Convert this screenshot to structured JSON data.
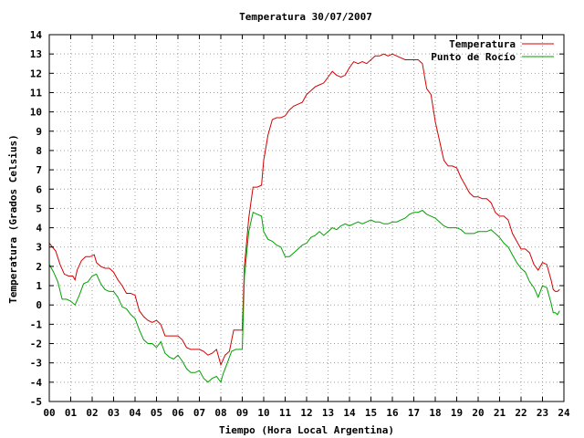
{
  "chart_data": {
    "type": "line",
    "title": "Temperatura 30/07/2007",
    "xlabel": "Tiempo (Hora Local Argentina)",
    "ylabel": "Temperatura (Grados Celsius)",
    "xlim": [
      0,
      24
    ],
    "ylim": [
      -5,
      14
    ],
    "x_ticks": [
      "00",
      "01",
      "02",
      "03",
      "04",
      "05",
      "06",
      "07",
      "08",
      "09",
      "10",
      "11",
      "12",
      "13",
      "14",
      "15",
      "16",
      "17",
      "18",
      "19",
      "20",
      "21",
      "22",
      "23",
      "24"
    ],
    "y_ticks": [
      "-5",
      "-4",
      "-3",
      "-2",
      "-1",
      "0",
      "1",
      "2",
      "3",
      "4",
      "5",
      "6",
      "7",
      "8",
      "9",
      "10",
      "11",
      "12",
      "13",
      "14"
    ],
    "grid": true,
    "legend_position": "top-right",
    "series": [
      {
        "name": "Temperatura",
        "color": "#d40000",
        "points": [
          [
            0.0,
            3.2
          ],
          [
            0.3,
            2.8
          ],
          [
            0.5,
            2.1
          ],
          [
            0.7,
            1.6
          ],
          [
            0.9,
            1.5
          ],
          [
            1.1,
            1.5
          ],
          [
            1.2,
            1.3
          ],
          [
            1.3,
            1.8
          ],
          [
            1.5,
            2.3
          ],
          [
            1.7,
            2.5
          ],
          [
            1.9,
            2.5
          ],
          [
            2.1,
            2.6
          ],
          [
            2.2,
            2.2
          ],
          [
            2.4,
            2.0
          ],
          [
            2.6,
            1.9
          ],
          [
            2.8,
            1.9
          ],
          [
            3.0,
            1.7
          ],
          [
            3.2,
            1.3
          ],
          [
            3.4,
            1.0
          ],
          [
            3.6,
            0.6
          ],
          [
            3.8,
            0.6
          ],
          [
            4.0,
            0.5
          ],
          [
            4.2,
            -0.3
          ],
          [
            4.4,
            -0.6
          ],
          [
            4.6,
            -0.8
          ],
          [
            4.8,
            -0.9
          ],
          [
            5.0,
            -0.8
          ],
          [
            5.2,
            -1.0
          ],
          [
            5.4,
            -1.6
          ],
          [
            5.6,
            -1.6
          ],
          [
            5.8,
            -1.6
          ],
          [
            6.0,
            -1.6
          ],
          [
            6.2,
            -1.8
          ],
          [
            6.4,
            -2.2
          ],
          [
            6.6,
            -2.3
          ],
          [
            6.8,
            -2.3
          ],
          [
            7.0,
            -2.3
          ],
          [
            7.2,
            -2.4
          ],
          [
            7.4,
            -2.6
          ],
          [
            7.6,
            -2.5
          ],
          [
            7.8,
            -2.3
          ],
          [
            8.0,
            -3.1
          ],
          [
            8.2,
            -2.6
          ],
          [
            8.4,
            -2.4
          ],
          [
            8.6,
            -1.3
          ],
          [
            8.8,
            -1.3
          ],
          [
            9.0,
            -1.3
          ],
          [
            9.1,
            2.0
          ],
          [
            9.3,
            4.5
          ],
          [
            9.5,
            6.1
          ],
          [
            9.7,
            6.1
          ],
          [
            9.9,
            6.2
          ],
          [
            10.0,
            7.5
          ],
          [
            10.2,
            8.8
          ],
          [
            10.4,
            9.6
          ],
          [
            10.6,
            9.7
          ],
          [
            10.8,
            9.7
          ],
          [
            11.0,
            9.8
          ],
          [
            11.2,
            10.1
          ],
          [
            11.4,
            10.3
          ],
          [
            11.6,
            10.4
          ],
          [
            11.8,
            10.5
          ],
          [
            12.0,
            10.9
          ],
          [
            12.2,
            11.1
          ],
          [
            12.4,
            11.3
          ],
          [
            12.6,
            11.4
          ],
          [
            12.8,
            11.5
          ],
          [
            13.0,
            11.8
          ],
          [
            13.2,
            12.1
          ],
          [
            13.4,
            11.9
          ],
          [
            13.6,
            11.8
          ],
          [
            13.8,
            11.9
          ],
          [
            14.0,
            12.3
          ],
          [
            14.2,
            12.6
          ],
          [
            14.4,
            12.5
          ],
          [
            14.6,
            12.6
          ],
          [
            14.8,
            12.5
          ],
          [
            15.0,
            12.7
          ],
          [
            15.2,
            12.9
          ],
          [
            15.4,
            12.9
          ],
          [
            15.6,
            13.0
          ],
          [
            15.8,
            12.9
          ],
          [
            16.0,
            13.0
          ],
          [
            16.2,
            12.9
          ],
          [
            16.4,
            12.8
          ],
          [
            16.6,
            12.7
          ],
          [
            16.8,
            12.7
          ],
          [
            17.0,
            12.7
          ],
          [
            17.2,
            12.7
          ],
          [
            17.4,
            12.5
          ],
          [
            17.6,
            11.2
          ],
          [
            17.8,
            10.9
          ],
          [
            18.0,
            9.5
          ],
          [
            18.2,
            8.5
          ],
          [
            18.4,
            7.5
          ],
          [
            18.6,
            7.2
          ],
          [
            18.8,
            7.2
          ],
          [
            19.0,
            7.1
          ],
          [
            19.2,
            6.6
          ],
          [
            19.4,
            6.2
          ],
          [
            19.6,
            5.8
          ],
          [
            19.8,
            5.6
          ],
          [
            20.0,
            5.6
          ],
          [
            20.2,
            5.5
          ],
          [
            20.4,
            5.5
          ],
          [
            20.6,
            5.3
          ],
          [
            20.8,
            4.8
          ],
          [
            21.0,
            4.6
          ],
          [
            21.2,
            4.6
          ],
          [
            21.4,
            4.4
          ],
          [
            21.6,
            3.7
          ],
          [
            21.8,
            3.3
          ],
          [
            22.0,
            2.9
          ],
          [
            22.2,
            2.9
          ],
          [
            22.4,
            2.7
          ],
          [
            22.6,
            2.1
          ],
          [
            22.8,
            1.8
          ],
          [
            23.0,
            2.2
          ],
          [
            23.2,
            2.1
          ],
          [
            23.4,
            1.3
          ],
          [
            23.5,
            0.8
          ],
          [
            23.6,
            0.7
          ],
          [
            23.7,
            0.7
          ],
          [
            23.8,
            0.8
          ]
        ]
      },
      {
        "name": "Punto de Rocío",
        "color": "#00a000",
        "points": [
          [
            0.0,
            2.1
          ],
          [
            0.2,
            1.7
          ],
          [
            0.4,
            1.2
          ],
          [
            0.6,
            0.3
          ],
          [
            0.8,
            0.3
          ],
          [
            1.0,
            0.2
          ],
          [
            1.2,
            0.0
          ],
          [
            1.4,
            0.5
          ],
          [
            1.6,
            1.1
          ],
          [
            1.8,
            1.2
          ],
          [
            2.0,
            1.5
          ],
          [
            2.2,
            1.6
          ],
          [
            2.4,
            1.1
          ],
          [
            2.6,
            0.8
          ],
          [
            2.8,
            0.7
          ],
          [
            3.0,
            0.7
          ],
          [
            3.2,
            0.4
          ],
          [
            3.4,
            -0.1
          ],
          [
            3.6,
            -0.2
          ],
          [
            3.8,
            -0.5
          ],
          [
            4.0,
            -0.7
          ],
          [
            4.2,
            -1.3
          ],
          [
            4.4,
            -1.8
          ],
          [
            4.6,
            -2.0
          ],
          [
            4.8,
            -2.0
          ],
          [
            5.0,
            -2.2
          ],
          [
            5.2,
            -1.9
          ],
          [
            5.4,
            -2.5
          ],
          [
            5.6,
            -2.7
          ],
          [
            5.8,
            -2.8
          ],
          [
            6.0,
            -2.6
          ],
          [
            6.2,
            -2.9
          ],
          [
            6.4,
            -3.3
          ],
          [
            6.6,
            -3.5
          ],
          [
            6.8,
            -3.5
          ],
          [
            7.0,
            -3.4
          ],
          [
            7.2,
            -3.8
          ],
          [
            7.4,
            -4.0
          ],
          [
            7.6,
            -3.8
          ],
          [
            7.8,
            -3.7
          ],
          [
            8.0,
            -4.0
          ],
          [
            8.1,
            -3.6
          ],
          [
            8.3,
            -3.0
          ],
          [
            8.5,
            -2.4
          ],
          [
            8.7,
            -2.3
          ],
          [
            9.0,
            -2.3
          ],
          [
            9.1,
            1.5
          ],
          [
            9.3,
            3.8
          ],
          [
            9.5,
            4.8
          ],
          [
            9.7,
            4.7
          ],
          [
            9.9,
            4.6
          ],
          [
            10.0,
            3.8
          ],
          [
            10.2,
            3.4
          ],
          [
            10.4,
            3.3
          ],
          [
            10.6,
            3.1
          ],
          [
            10.8,
            3.0
          ],
          [
            11.0,
            2.5
          ],
          [
            11.2,
            2.5
          ],
          [
            11.4,
            2.7
          ],
          [
            11.6,
            2.9
          ],
          [
            11.8,
            3.1
          ],
          [
            12.0,
            3.2
          ],
          [
            12.2,
            3.5
          ],
          [
            12.4,
            3.6
          ],
          [
            12.6,
            3.8
          ],
          [
            12.8,
            3.6
          ],
          [
            13.0,
            3.8
          ],
          [
            13.2,
            4.0
          ],
          [
            13.4,
            3.9
          ],
          [
            13.6,
            4.1
          ],
          [
            13.8,
            4.2
          ],
          [
            14.0,
            4.1
          ],
          [
            14.2,
            4.2
          ],
          [
            14.4,
            4.3
          ],
          [
            14.6,
            4.2
          ],
          [
            14.8,
            4.3
          ],
          [
            15.0,
            4.4
          ],
          [
            15.2,
            4.3
          ],
          [
            15.4,
            4.3
          ],
          [
            15.6,
            4.2
          ],
          [
            15.8,
            4.2
          ],
          [
            16.0,
            4.3
          ],
          [
            16.2,
            4.3
          ],
          [
            16.4,
            4.4
          ],
          [
            16.6,
            4.5
          ],
          [
            16.8,
            4.7
          ],
          [
            17.0,
            4.8
          ],
          [
            17.2,
            4.8
          ],
          [
            17.4,
            4.9
          ],
          [
            17.6,
            4.7
          ],
          [
            17.8,
            4.6
          ],
          [
            18.0,
            4.5
          ],
          [
            18.2,
            4.3
          ],
          [
            18.4,
            4.1
          ],
          [
            18.6,
            4.0
          ],
          [
            18.8,
            4.0
          ],
          [
            19.0,
            4.0
          ],
          [
            19.2,
            3.9
          ],
          [
            19.4,
            3.7
          ],
          [
            19.6,
            3.7
          ],
          [
            19.8,
            3.7
          ],
          [
            20.0,
            3.8
          ],
          [
            20.2,
            3.8
          ],
          [
            20.4,
            3.8
          ],
          [
            20.6,
            3.9
          ],
          [
            20.8,
            3.7
          ],
          [
            21.0,
            3.5
          ],
          [
            21.2,
            3.2
          ],
          [
            21.4,
            3.0
          ],
          [
            21.6,
            2.6
          ],
          [
            21.8,
            2.2
          ],
          [
            22.0,
            1.9
          ],
          [
            22.2,
            1.7
          ],
          [
            22.4,
            1.2
          ],
          [
            22.6,
            0.9
          ],
          [
            22.8,
            0.4
          ],
          [
            23.0,
            1.0
          ],
          [
            23.2,
            0.9
          ],
          [
            23.4,
            0.1
          ],
          [
            23.5,
            -0.4
          ],
          [
            23.6,
            -0.4
          ],
          [
            23.7,
            -0.5
          ],
          [
            23.8,
            -0.3
          ]
        ]
      }
    ]
  }
}
